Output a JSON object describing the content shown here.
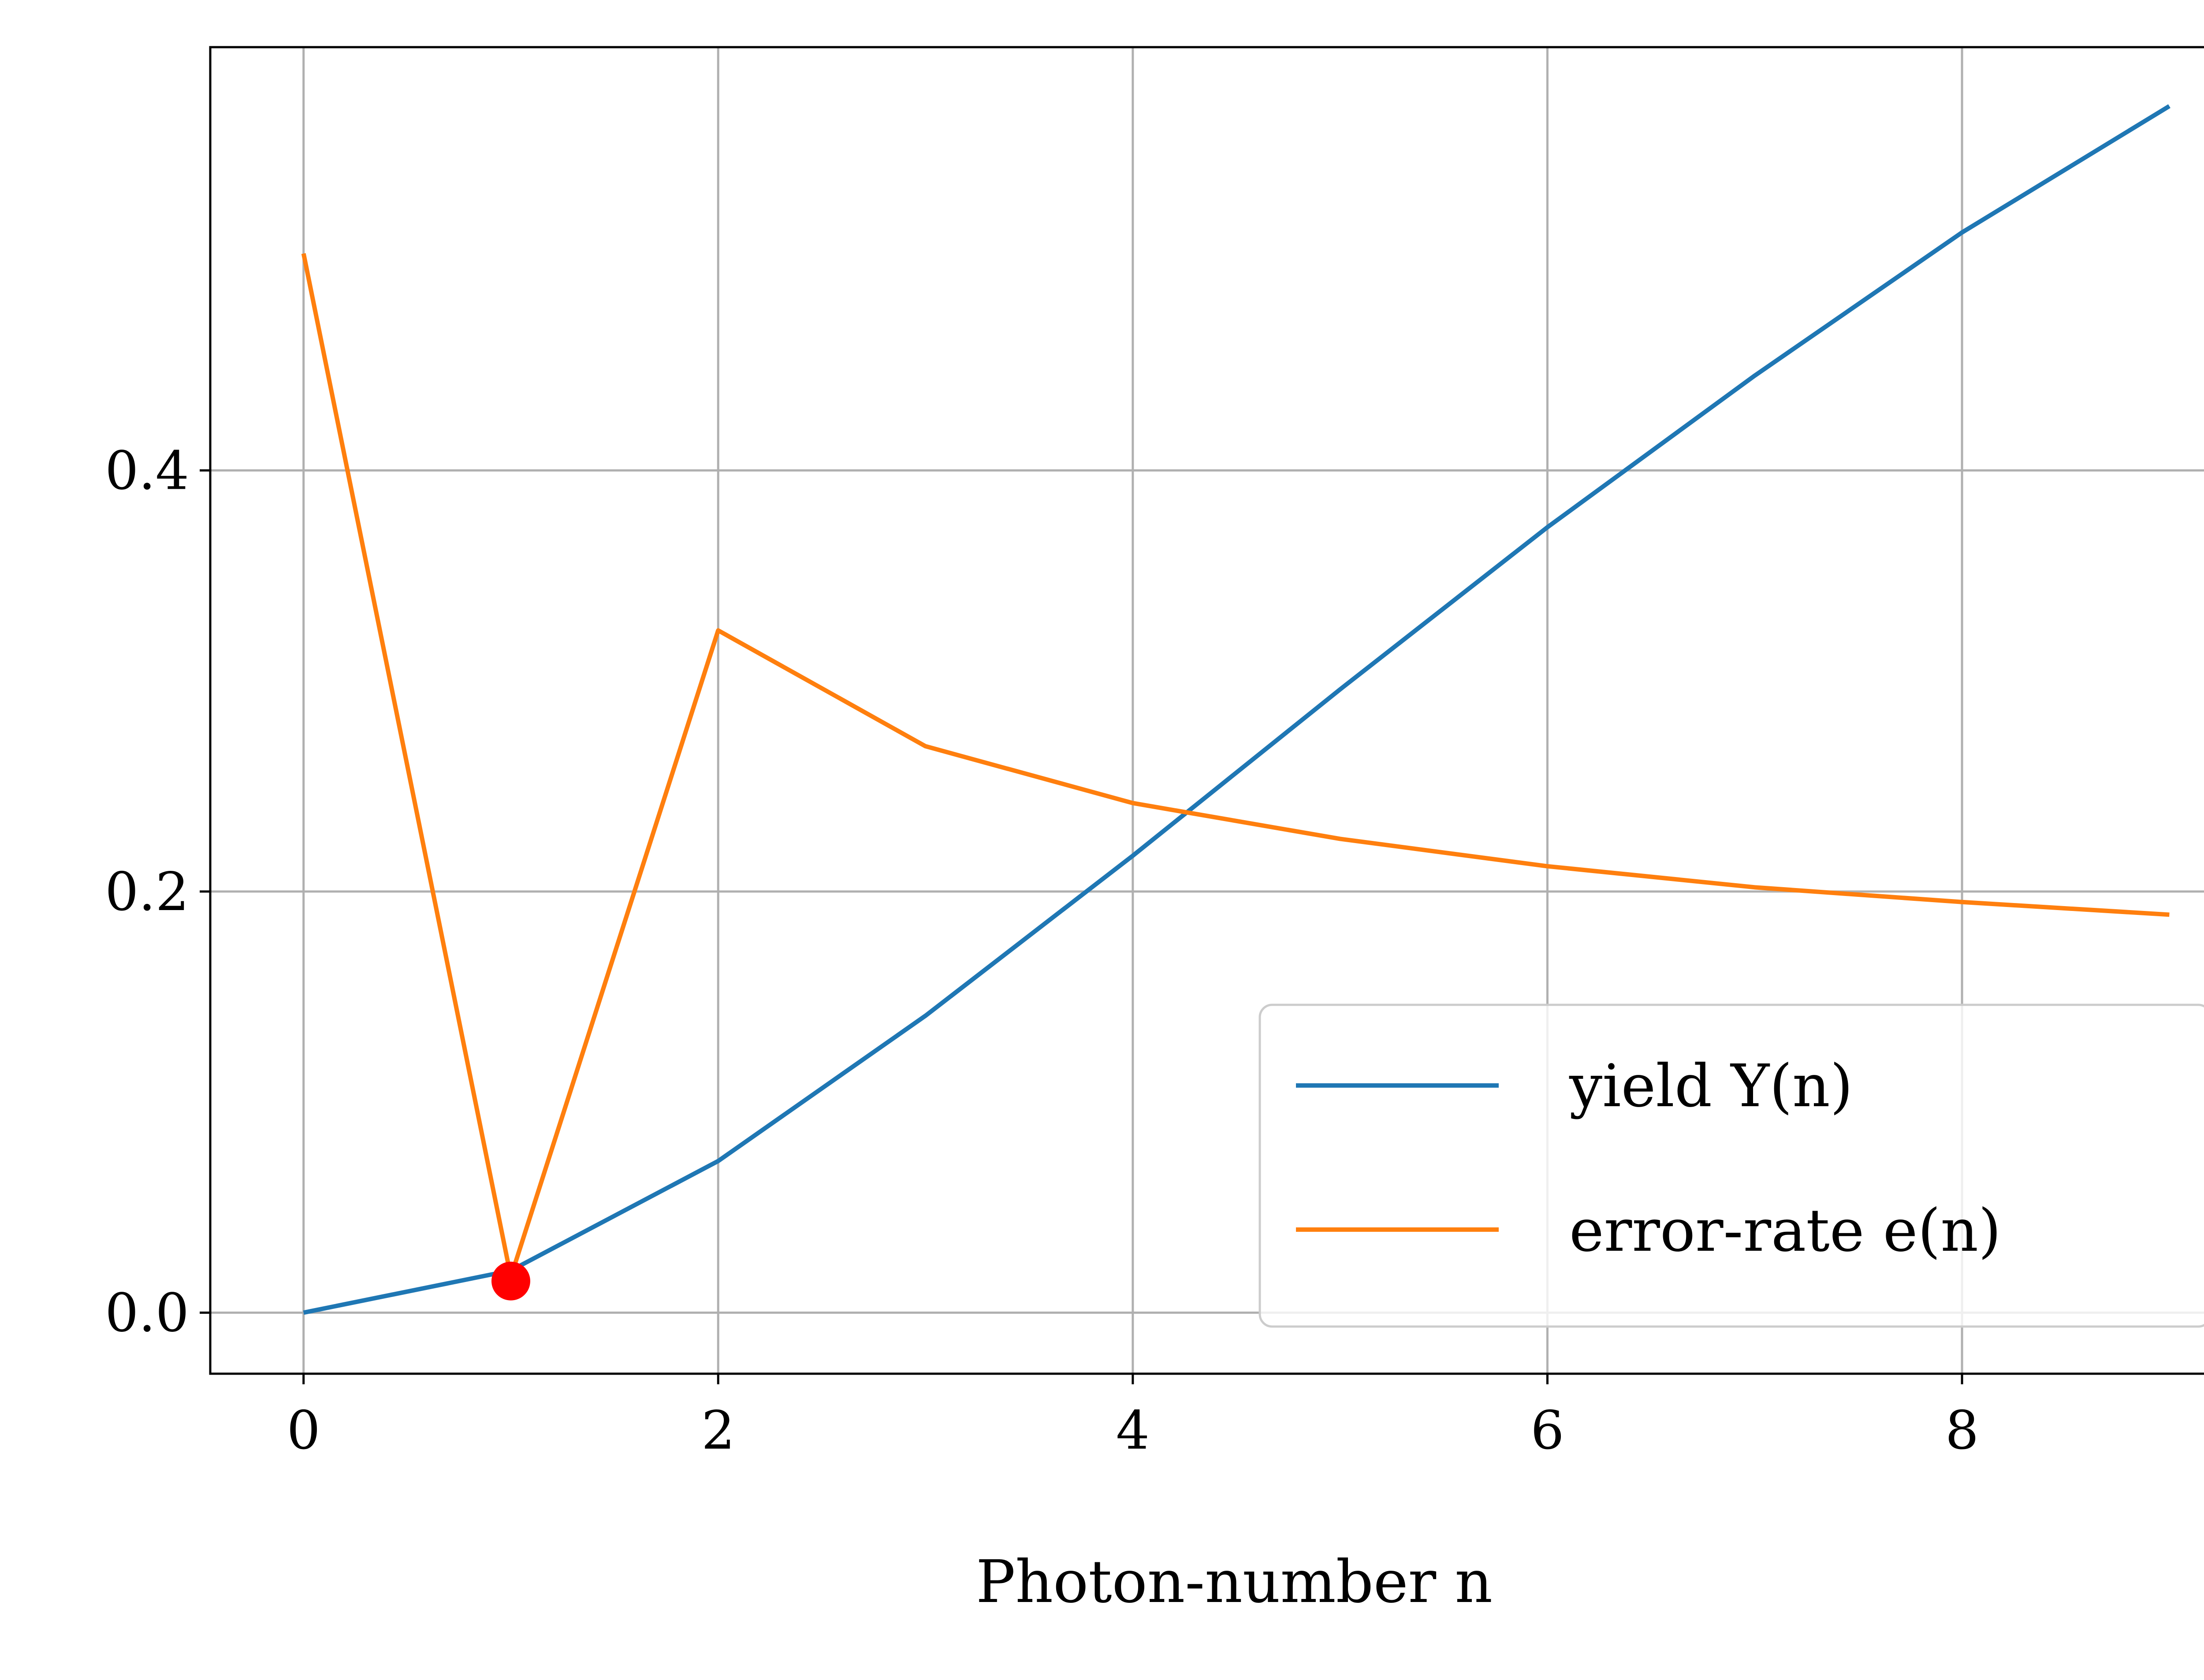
{
  "chart_data": {
    "type": "line",
    "title": "",
    "xlabel": "Photon-number n",
    "ylabel": "",
    "xlim": [
      -0.45,
      9.45
    ],
    "ylim": [
      -0.029,
      0.601
    ],
    "xticks": [
      0,
      2,
      4,
      6,
      8
    ],
    "xtick_labels": [
      "0",
      "2",
      "4",
      "6",
      "8"
    ],
    "yticks": [
      0.0,
      0.2,
      0.4
    ],
    "ytick_labels": [
      "0.0",
      "0.2",
      "0.4"
    ],
    "grid": true,
    "legend_position": "lower-right",
    "x": [
      0,
      1,
      2,
      3,
      4,
      5,
      6,
      7,
      8,
      9
    ],
    "series": [
      {
        "name": "yield Y(n)",
        "color": "#1f77b4",
        "values": [
          0.0,
          0.02,
          0.072,
          0.141,
          0.217,
          0.296,
          0.373,
          0.445,
          0.513,
          0.573
        ]
      },
      {
        "name": "error-rate e(n)",
        "color": "#ff7f0e",
        "values": [
          0.503,
          0.017,
          0.324,
          0.269,
          0.242,
          0.225,
          0.212,
          0.202,
          0.195,
          0.189
        ]
      }
    ],
    "marker": {
      "x": 1,
      "y": 0.015,
      "color": "#ff0000"
    }
  }
}
